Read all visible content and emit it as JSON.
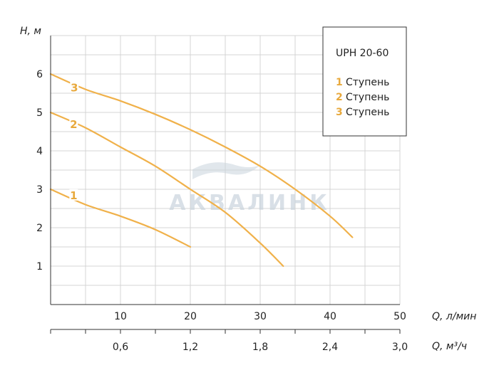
{
  "chart_data": {
    "type": "line",
    "title": "UPH 20-60",
    "ylabel": "H, м",
    "xlabel": "Q, л/мин",
    "xlabel2": "Q, м³/ч",
    "xlim": [
      0,
      50
    ],
    "ylim": [
      0,
      7
    ],
    "grid": true,
    "legend_position": "top-right",
    "x_ticks": [
      "10",
      "20",
      "30",
      "40",
      "50"
    ],
    "x2_ticks": [
      "0,6",
      "1,2",
      "1,8",
      "2,4",
      "3,0"
    ],
    "y_ticks": [
      "1",
      "2",
      "3",
      "4",
      "5",
      "6"
    ],
    "series": [
      {
        "name": "1 Ступень",
        "label": "1",
        "x": [
          0,
          5,
          10,
          15,
          20
        ],
        "y": [
          3.0,
          2.6,
          2.3,
          1.95,
          1.5
        ]
      },
      {
        "name": "2 Ступень",
        "label": "2",
        "x": [
          0,
          5,
          10,
          15,
          20,
          25,
          30,
          33.3
        ],
        "y": [
          5.0,
          4.6,
          4.1,
          3.6,
          3.0,
          2.4,
          1.6,
          1.0
        ]
      },
      {
        "name": "3 Ступень",
        "label": "3",
        "x": [
          0,
          5,
          10,
          15,
          20,
          25,
          30,
          35,
          40,
          43.2
        ],
        "y": [
          6.0,
          5.6,
          5.3,
          4.95,
          4.55,
          4.1,
          3.6,
          3.0,
          2.3,
          1.75
        ]
      }
    ],
    "line_color": "#f0b14a",
    "label_color": "#e8a93d"
  },
  "legend": {
    "title": "UPH 20-60",
    "items": [
      {
        "num": "1",
        "text": "Ступень"
      },
      {
        "num": "2",
        "text": "Ступень"
      },
      {
        "num": "3",
        "text": "Ступень"
      }
    ]
  },
  "watermark": {
    "text": "АКВАЛИНК"
  },
  "colors": {
    "grid": "#d4d4d4",
    "axis": "#333333",
    "watermark": "#c9d3dd"
  }
}
